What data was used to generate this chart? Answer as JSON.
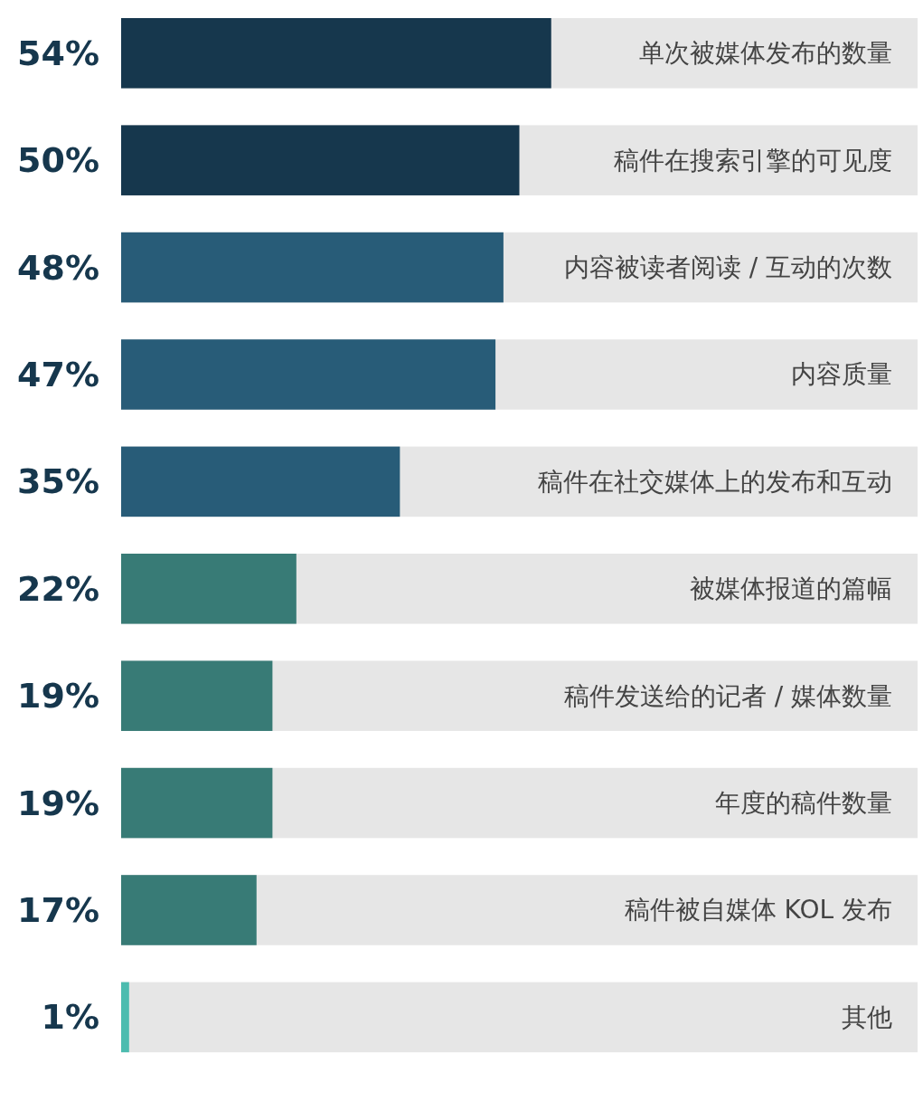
{
  "chart_data": {
    "type": "bar",
    "orientation": "horizontal",
    "categories": [
      "单次被媒体发布的数量",
      "稿件在搜索引擎的可见度",
      "内容被读者阅读 / 互动的次数",
      "内容质量",
      "稿件在社交媒体上的发布和互动",
      "被媒体报道的篇幅",
      "稿件发送给的记者 / 媒体数量",
      "年度的稿件数量",
      "稿件被自媒体 KOL 发布",
      "其他"
    ],
    "values": [
      54,
      50,
      48,
      47,
      35,
      22,
      19,
      19,
      17,
      1
    ],
    "colors": [
      "#16374d",
      "#16374d",
      "#285c78",
      "#285c78",
      "#285c78",
      "#387b76",
      "#387b76",
      "#387b76",
      "#387b76",
      "#4cbcaf"
    ],
    "value_labels": [
      "54%",
      "50%",
      "48%",
      "47%",
      "35%",
      "22%",
      "19%",
      "19%",
      "17%",
      "1%"
    ],
    "xlim": [
      0,
      100
    ]
  }
}
